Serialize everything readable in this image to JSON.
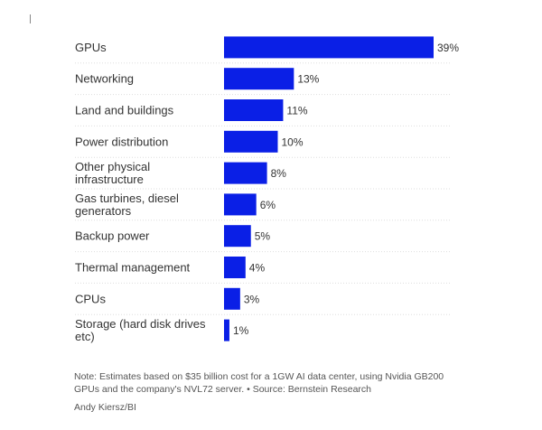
{
  "chart_data": {
    "type": "bar",
    "orientation": "horizontal",
    "categories": [
      "GPUs",
      "Networking",
      "Land and buildings",
      "Power distribution",
      "Other physical infrastructure",
      "Gas turbines, diesel generators",
      "Backup power",
      "Thermal management",
      "CPUs",
      "Storage (hard disk drives etc)"
    ],
    "category_lines": [
      [
        "GPUs"
      ],
      [
        "Networking"
      ],
      [
        "Land and buildings"
      ],
      [
        "Power distribution"
      ],
      [
        "Other physical",
        "infrastructure"
      ],
      [
        "Gas turbines, diesel",
        "generators"
      ],
      [
        "Backup power"
      ],
      [
        "Thermal management"
      ],
      [
        "CPUs"
      ],
      [
        "Storage (hard disk drives",
        "etc)"
      ]
    ],
    "values": [
      39,
      13,
      11,
      10,
      8,
      6,
      5,
      4,
      3,
      1
    ],
    "value_labels": [
      "39%",
      "13%",
      "11%",
      "10%",
      "8%",
      "6%",
      "5%",
      "4%",
      "3%",
      "1%"
    ],
    "xlim": [
      0,
      39
    ],
    "bar_color": "#0a1fe6",
    "grid": false
  },
  "note": "Note: Estimates based on $35 billion cost for a 1GW AI data center, using Nvidia GB200 GPUs and the company's NVL72 server. • Source: Bernstein Research",
  "credit": "Andy Kiersz/BI"
}
